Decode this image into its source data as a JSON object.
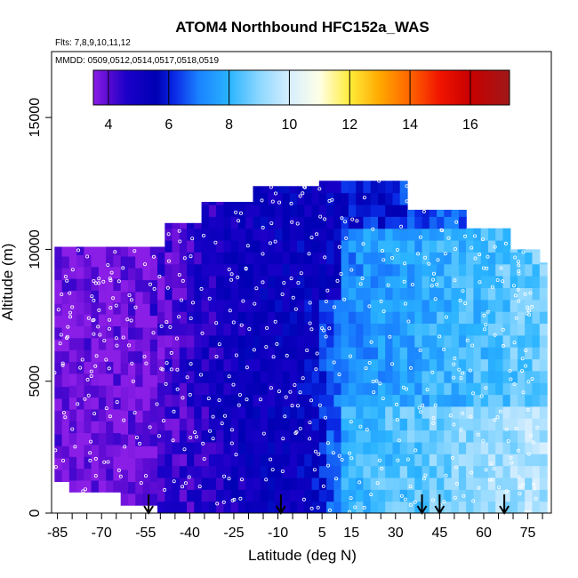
{
  "chart_data": {
    "type": "heatmap",
    "title": "ATOM4 Northbound HFC152a_WAS",
    "subtitle_flights": "Flts: 7,8,9,10,11,12",
    "subtitle_dates": "MMDD: 0509,0512,0514,0517,0518,0519",
    "xlabel": "Latitude (deg N)",
    "ylabel": "Altitude (m)",
    "xlim": [
      -87,
      83
    ],
    "ylim": [
      0,
      17500
    ],
    "x_ticks": [
      -85,
      -70,
      -55,
      -40,
      -25,
      -10,
      5,
      15,
      30,
      45,
      60,
      75
    ],
    "x_tick_labels": [
      "-85",
      "-70",
      "-55",
      "-40",
      "-25",
      "-10",
      "5",
      "15",
      "30",
      "45",
      "60",
      "75"
    ],
    "x_minor_ticks": [
      -80,
      -75,
      -65,
      -60,
      -50,
      -45,
      -35,
      -30,
      -20,
      -15,
      -5,
      0,
      10,
      20,
      25,
      35,
      40,
      50,
      55,
      65,
      70,
      80
    ],
    "y_ticks": [
      0,
      5000,
      10000,
      15000
    ],
    "y_tick_labels": [
      "0",
      "5000",
      "10000",
      "15000"
    ],
    "colorbar": {
      "min": 3.5,
      "max": 17.3,
      "ticks": [
        4,
        6,
        8,
        10,
        12,
        14,
        16
      ],
      "tick_labels": [
        "4",
        "6",
        "8",
        "10",
        "12",
        "14",
        "16"
      ],
      "stops": [
        {
          "v": 3.5,
          "c": "#8a1ee6"
        },
        {
          "v": 4.0,
          "c": "#5a0ad2"
        },
        {
          "v": 4.6,
          "c": "#1a00c8"
        },
        {
          "v": 5.6,
          "c": "#0000b4"
        },
        {
          "v": 6.2,
          "c": "#0a2ae6"
        },
        {
          "v": 7.0,
          "c": "#1a82ff"
        },
        {
          "v": 8.0,
          "c": "#2ab4ff"
        },
        {
          "v": 9.0,
          "c": "#8cd7ff"
        },
        {
          "v": 10.0,
          "c": "#d6eeff"
        },
        {
          "v": 11.0,
          "c": "#ffffe6"
        },
        {
          "v": 12.0,
          "c": "#ffec3a"
        },
        {
          "v": 13.0,
          "c": "#ffa800"
        },
        {
          "v": 14.0,
          "c": "#ff6400"
        },
        {
          "v": 15.0,
          "c": "#f01400"
        },
        {
          "v": 16.0,
          "c": "#c80000"
        },
        {
          "v": 17.3,
          "c": "#a01818"
        }
      ]
    },
    "profile_markers_lat": [
      -54,
      -9,
      39,
      45,
      67
    ],
    "grid": false,
    "legend": "colorbar top"
  }
}
